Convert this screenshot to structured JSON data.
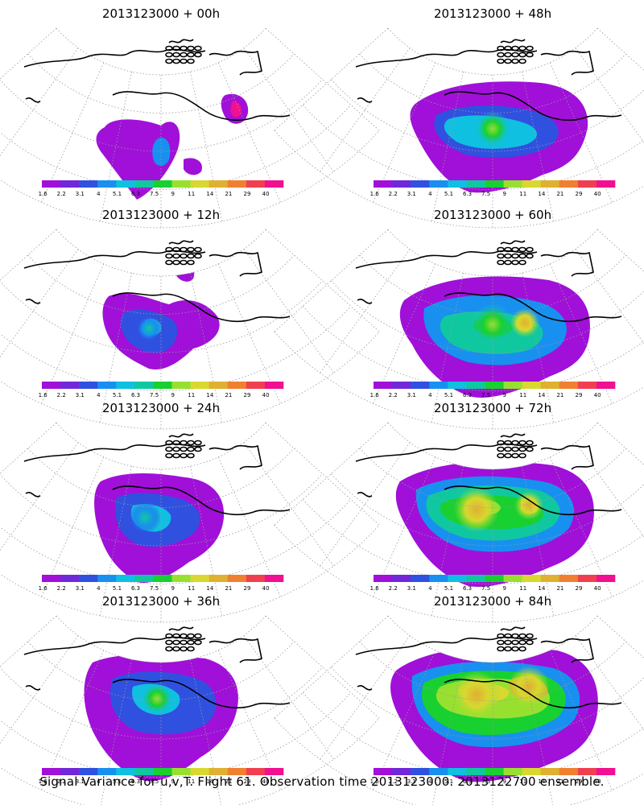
{
  "panels": [
    {
      "title": "2013123000  +  00h"
    },
    {
      "title": "2013123000  +  48h"
    },
    {
      "title": "2013123000  +  12h"
    },
    {
      "title": "2013123000  +  60h"
    },
    {
      "title": "2013123000  +  24h"
    },
    {
      "title": "2013123000  +  72h"
    },
    {
      "title": "2013123000  +  36h"
    },
    {
      "title": "2013123000  +  84h"
    }
  ],
  "colorbar": {
    "ticks": [
      "1.6",
      "2.2",
      "3.1",
      "4",
      "5.1",
      "6.3",
      "7.5",
      "9",
      "11",
      "14",
      "21",
      "29",
      "40"
    ],
    "colors": [
      "#a010d8",
      "#7028d8",
      "#3050e0",
      "#1890f0",
      "#10c0e0",
      "#10c8a0",
      "#18d030",
      "#98e030",
      "#d8d830",
      "#e0b030",
      "#f08030",
      "#f04050",
      "#f01090"
    ]
  },
  "caption": "Signal Variance for u,v,T. Flight 61. Observation time 2013123000. 2013122700 ensemble."
}
